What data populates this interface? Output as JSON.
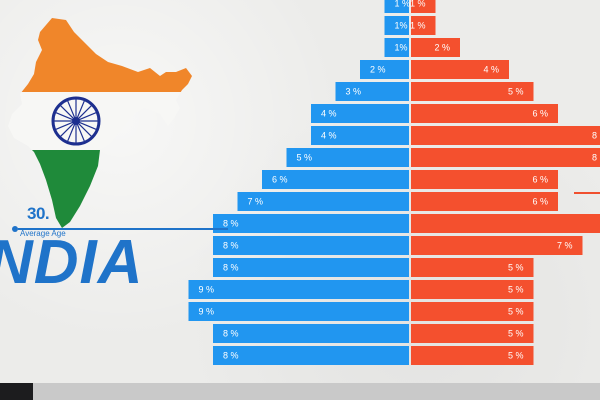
{
  "country": {
    "name": "NDIA",
    "average_age_value": "30.",
    "average_age_label": "Average Age"
  },
  "colors": {
    "male": "#2196f0",
    "female": "#f4502e",
    "accent": "#1f73c9",
    "saffron": "#f0862a",
    "green": "#1f8a3a",
    "chakra": "#1d2f8f"
  },
  "chart_data": {
    "type": "bar",
    "orientation": "horizontal-pyramid",
    "series": [
      {
        "values": [
          1,
          1,
          1,
          2,
          3,
          4,
          4,
          5,
          6,
          7,
          8,
          8,
          8,
          9,
          9,
          8,
          8
        ],
        "labels": [
          "1 %",
          "1%",
          "1%",
          "2 %",
          "3 %",
          "4 %",
          "4 %",
          "5 %",
          "6 %",
          "7 %",
          "8 %",
          "8 %",
          "8 %",
          "9 %",
          "9 %",
          "8 %",
          "8 %"
        ]
      },
      {
        "values": [
          1,
          1,
          2,
          4,
          5,
          6,
          8,
          8,
          6,
          6,
          8,
          7,
          5,
          5,
          5,
          5,
          5
        ],
        "labels": [
          "1 %",
          "1 %",
          "2 %",
          "4 %",
          "5 %",
          "6 %",
          "8",
          "8",
          "6 %",
          "6 %",
          "",
          "7 %",
          "5 %",
          "5 %",
          "5 %",
          "5 %",
          "5 %"
        ]
      }
    ],
    "xlim": [
      0,
      10
    ]
  }
}
